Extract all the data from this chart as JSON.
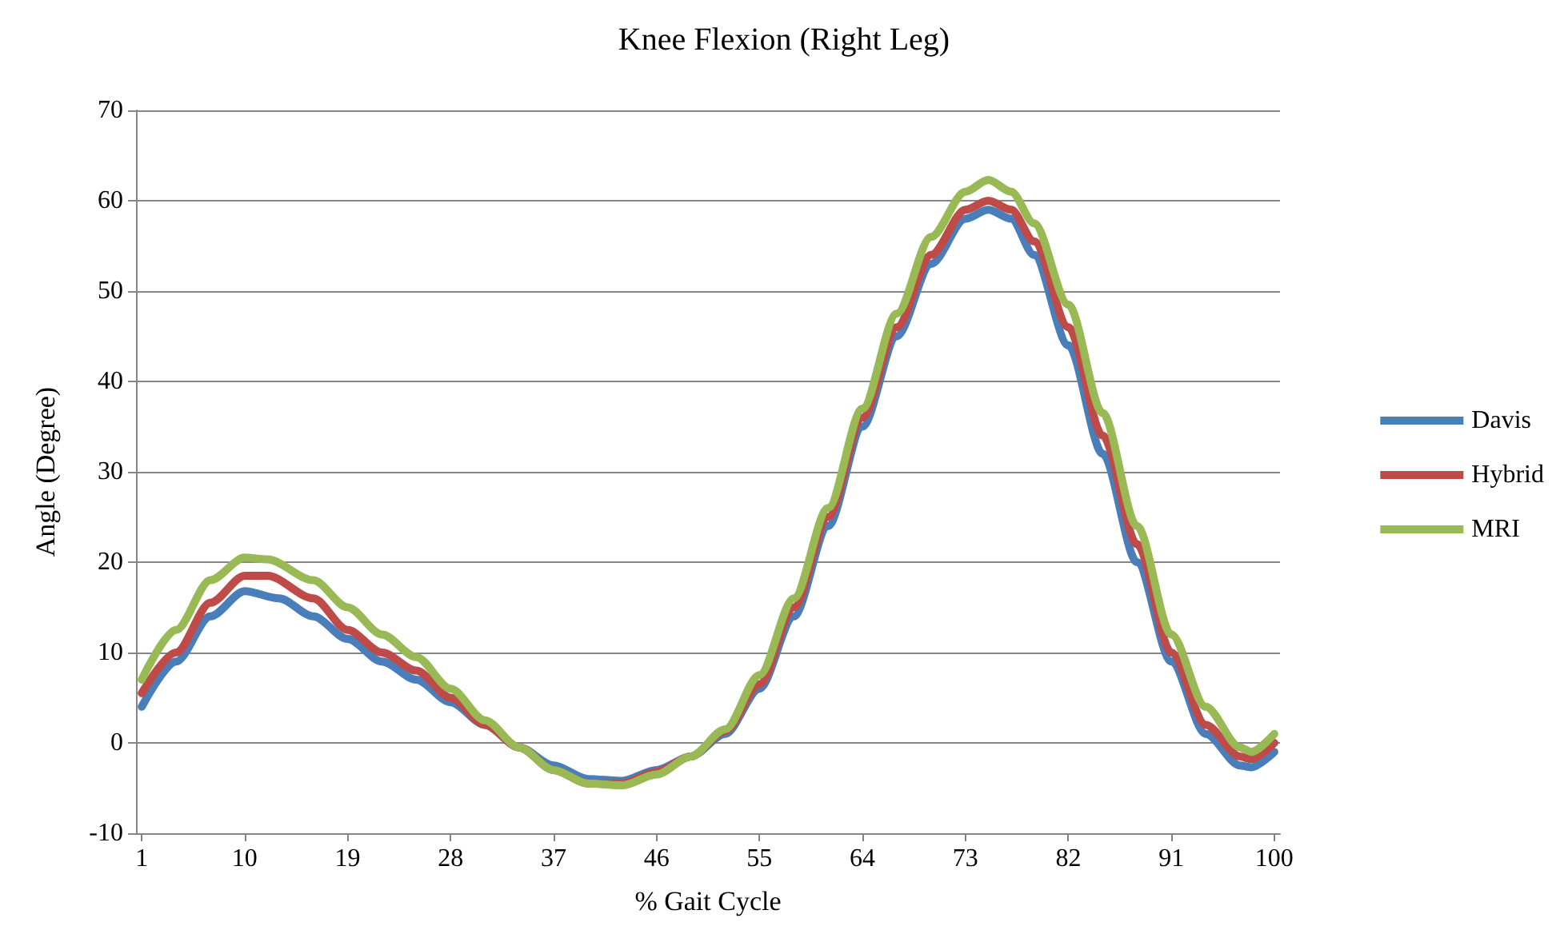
{
  "chart_data": {
    "type": "line",
    "title": "Knee Flexion (Right Leg)",
    "xlabel": "% Gait Cycle",
    "ylabel": "Angle (Degree)",
    "xlim": [
      0.5,
      100.5
    ],
    "xticks": [
      1,
      10,
      19,
      28,
      37,
      46,
      55,
      64,
      73,
      82,
      91,
      100
    ],
    "ylim": [
      -10,
      70
    ],
    "yticks": [
      -10,
      0,
      10,
      20,
      30,
      40,
      50,
      60,
      70
    ],
    "grid": "y",
    "legend": "right",
    "marker": "none",
    "line_style": "solid",
    "series": [
      {
        "name": "Davis",
        "color": "#4a7ebb",
        "x": [
          1,
          4,
          7,
          10,
          13,
          16,
          19,
          22,
          25,
          28,
          31,
          34,
          37,
          40,
          43,
          46,
          49,
          52,
          55,
          58,
          61,
          64,
          67,
          70,
          73,
          75,
          77,
          79,
          82,
          85,
          88,
          91,
          94,
          97,
          98,
          100
        ],
        "values": [
          4,
          9,
          14,
          16.8,
          16,
          14,
          11.5,
          9,
          7,
          4.5,
          2,
          -0.5,
          -2.5,
          -4,
          -4.2,
          -3,
          -1.5,
          1,
          6,
          14,
          24,
          35,
          45,
          53,
          58,
          59,
          58,
          54,
          44,
          32,
          20,
          9,
          1,
          -2.5,
          -2.7,
          -1
        ]
      },
      {
        "name": "Hybrid",
        "color": "#be4b48",
        "x": [
          1,
          4,
          7,
          10,
          12,
          16,
          19,
          22,
          25,
          28,
          31,
          34,
          37,
          40,
          43,
          46,
          49,
          52,
          55,
          58,
          61,
          64,
          67,
          70,
          73,
          75,
          77,
          79,
          82,
          85,
          88,
          91,
          94,
          97,
          98,
          100
        ],
        "values": [
          5.5,
          10,
          15.5,
          18.5,
          18.5,
          16,
          12.5,
          10,
          8,
          5,
          2,
          -0.5,
          -3,
          -4.5,
          -4.5,
          -3.2,
          -1.5,
          1.3,
          6.5,
          15,
          25,
          36,
          46,
          54,
          59,
          60,
          59,
          55.5,
          46,
          34,
          22,
          10,
          2,
          -1.5,
          -1.8,
          0
        ]
      },
      {
        "name": "MRI",
        "color": "#98b954",
        "x": [
          1,
          4,
          7,
          10,
          12,
          16,
          19,
          22,
          25,
          28,
          31,
          34,
          37,
          40,
          43,
          46,
          49,
          52,
          55,
          58,
          61,
          64,
          67,
          70,
          73,
          75,
          77,
          79,
          82,
          85,
          88,
          91,
          94,
          97,
          98,
          100
        ],
        "values": [
          7,
          12.5,
          18,
          20.5,
          20.3,
          18,
          15,
          12,
          9.5,
          6,
          2.5,
          -0.5,
          -3,
          -4.5,
          -4.7,
          -3.5,
          -1.5,
          1.5,
          7.5,
          16,
          26,
          37,
          47.5,
          56,
          61,
          62.3,
          61,
          57.5,
          48.5,
          36.5,
          24,
          12,
          4,
          -0.5,
          -1,
          1
        ]
      }
    ]
  }
}
